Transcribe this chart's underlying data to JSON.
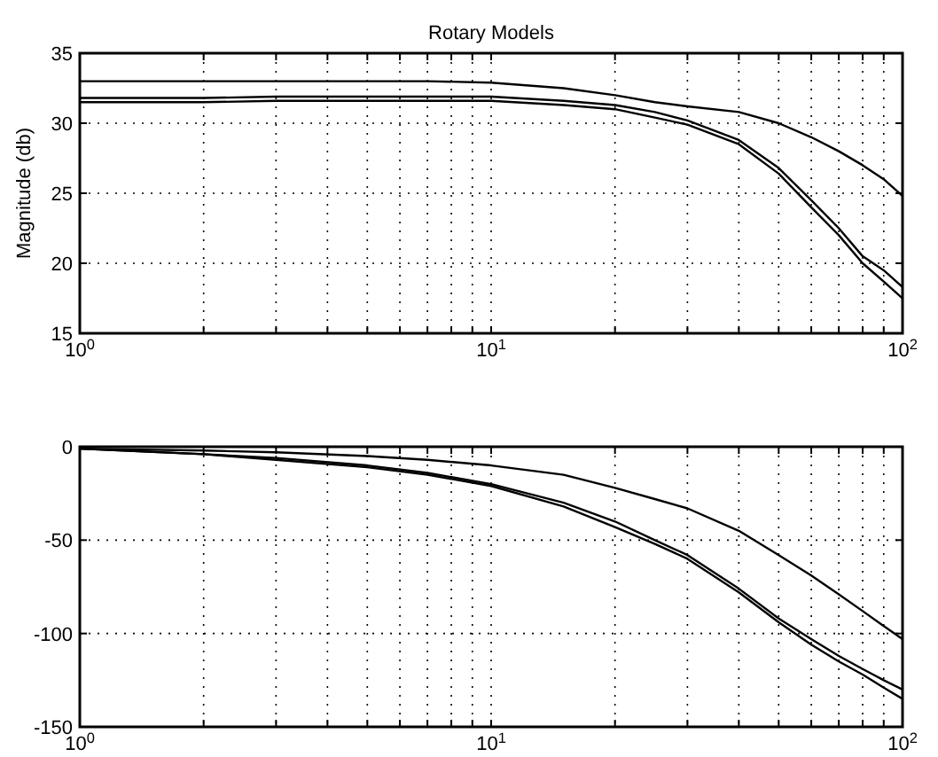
{
  "chart_data": [
    {
      "type": "line",
      "title": "Rotary Models",
      "ylabel": "Magnitude (db)",
      "log": "x",
      "grid": true,
      "x": [
        1,
        2,
        3,
        5,
        7,
        10,
        15,
        20,
        25,
        30,
        40,
        50,
        60,
        70,
        80,
        90,
        100
      ],
      "series": [
        {
          "color": "#000000",
          "values": [
            33,
            33,
            33,
            33,
            33,
            32.9,
            32.5,
            32,
            31.5,
            31.2,
            30.8,
            30,
            29,
            28,
            27,
            26,
            24.8
          ]
        },
        {
          "color": "#000000",
          "values": [
            31.8,
            31.8,
            31.9,
            31.9,
            31.9,
            31.9,
            31.6,
            31.3,
            30.8,
            30.2,
            28.8,
            26.8,
            24.5,
            22.5,
            20.5,
            19.5,
            18.3
          ]
        },
        {
          "color": "#000000",
          "values": [
            31.5,
            31.5,
            31.6,
            31.6,
            31.6,
            31.6,
            31.3,
            31,
            30.4,
            29.9,
            28.5,
            26.4,
            24,
            22,
            20,
            18.7,
            17.5
          ]
        }
      ],
      "xlim": [
        1,
        100
      ],
      "xticks": [
        {
          "value": 1,
          "label": "10$^{0}$"
        },
        {
          "value": 2,
          "label": null
        },
        {
          "value": 3,
          "label": null
        },
        {
          "value": 4,
          "label": null
        },
        {
          "value": 5,
          "label": null
        },
        {
          "value": 6,
          "label": null
        },
        {
          "value": 7,
          "label": null
        },
        {
          "value": 8,
          "label": null
        },
        {
          "value": 9,
          "label": null
        },
        {
          "value": 10,
          "label": "10$^{1}$"
        },
        {
          "value": 20,
          "label": null
        },
        {
          "value": 30,
          "label": null
        },
        {
          "value": 40,
          "label": null
        },
        {
          "value": 50,
          "label": null
        },
        {
          "value": 60,
          "label": null
        },
        {
          "value": 70,
          "label": null
        },
        {
          "value": 80,
          "label": null
        },
        {
          "value": 90,
          "label": null
        },
        {
          "value": 100,
          "label": "10$^{2}$"
        }
      ],
      "ylim": [
        15,
        35
      ],
      "yticks": [
        15,
        20,
        25,
        30,
        35
      ]
    },
    {
      "type": "line",
      "log": "x",
      "grid": true,
      "x": [
        1,
        2,
        3,
        5,
        7,
        10,
        15,
        20,
        25,
        30,
        40,
        50,
        60,
        70,
        80,
        90,
        100
      ],
      "series": [
        {
          "color": "#000000",
          "values": [
            -1,
            -2,
            -3,
            -5,
            -7,
            -10,
            -15,
            -22,
            -28,
            -33,
            -45,
            -58,
            -69,
            -79,
            -88,
            -96,
            -103
          ]
        },
        {
          "color": "#000000",
          "values": [
            -1,
            -4,
            -6,
            -10,
            -14,
            -20,
            -30,
            -40,
            -50,
            -58,
            -76,
            -92,
            -103,
            -112,
            -119,
            -125,
            -130
          ]
        },
        {
          "color": "#000000",
          "values": [
            -1,
            -4,
            -7,
            -11,
            -15,
            -21,
            -32,
            -43,
            -52,
            -60,
            -78,
            -94,
            -106,
            -115,
            -122,
            -129,
            -135
          ]
        }
      ],
      "xlim": [
        1,
        100
      ],
      "xticks": [
        {
          "value": 1,
          "label": "10$^{0}$"
        },
        {
          "value": 2,
          "label": null
        },
        {
          "value": 3,
          "label": null
        },
        {
          "value": 4,
          "label": null
        },
        {
          "value": 5,
          "label": null
        },
        {
          "value": 6,
          "label": null
        },
        {
          "value": 7,
          "label": null
        },
        {
          "value": 8,
          "label": null
        },
        {
          "value": 9,
          "label": null
        },
        {
          "value": 10,
          "label": "10$^{1}$"
        },
        {
          "value": 20,
          "label": null
        },
        {
          "value": 30,
          "label": null
        },
        {
          "value": 40,
          "label": null
        },
        {
          "value": 50,
          "label": null
        },
        {
          "value": 60,
          "label": null
        },
        {
          "value": 70,
          "label": null
        },
        {
          "value": 80,
          "label": null
        },
        {
          "value": 90,
          "label": null
        },
        {
          "value": 100,
          "label": "10$^{2}$"
        }
      ],
      "ylim": [
        -150,
        0
      ],
      "yticks": [
        -150,
        -100,
        -50,
        0
      ]
    }
  ]
}
